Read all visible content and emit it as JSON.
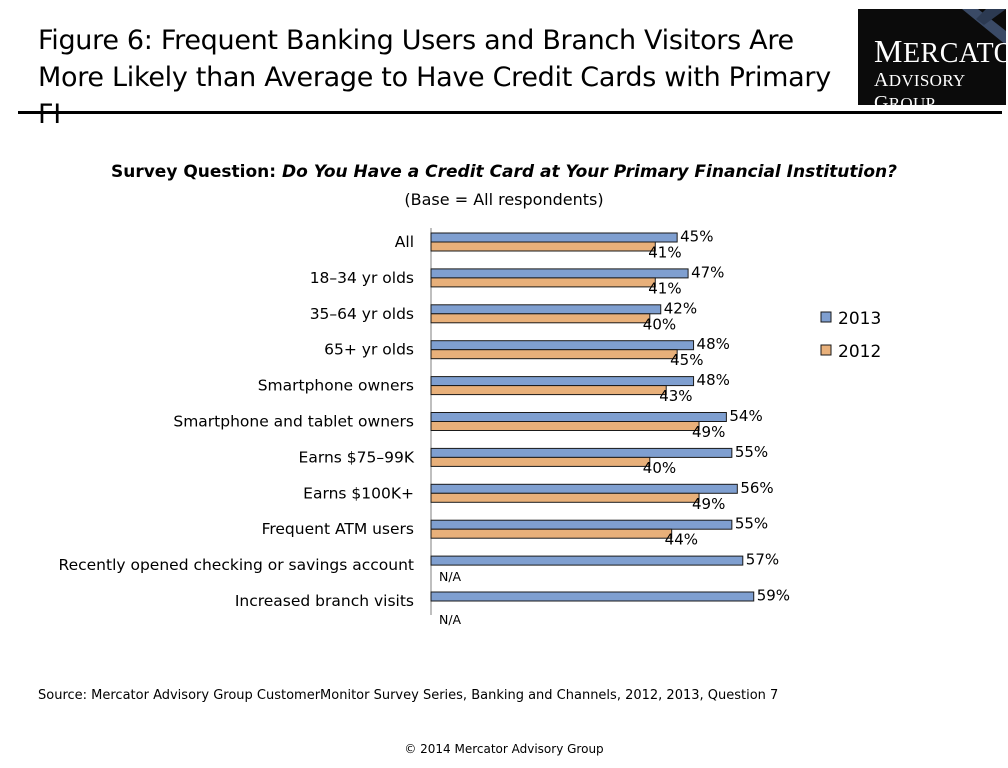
{
  "title": "Figure 6: Frequent Banking Users and Branch Visitors Are More Likely than Average to Have Credit Cards with Primary FI",
  "logo": {
    "line1": "Mercator",
    "line2": "Advisory Group"
  },
  "survey": {
    "prefix": "Survey Question:",
    "question": "Do You Have a Credit Card at Your Primary Financial Institution?",
    "base": "(Base = All respondents)"
  },
  "source": "Source: Mercator Advisory Group CustomerMonitor Survey Series, Banking and Channels, 2012, 2013,  Question 7",
  "copyright": "© 2014 Mercator Advisory Group",
  "colors": {
    "s2013": "#7f9fd0",
    "s2012": "#e8b07a",
    "outline": "#1a1a1a"
  },
  "chart_data": {
    "type": "bar",
    "orientation": "horizontal",
    "categories": [
      "All",
      "18–34 yr olds",
      "35–64 yr olds",
      "65+ yr olds",
      "Smartphone owners",
      "Smartphone and tablet owners",
      "Earns $75–99K",
      "Earns $100K+",
      "Frequent ATM users",
      "Recently opened checking or savings account",
      "Increased branch visits"
    ],
    "series": [
      {
        "name": "2013",
        "values": [
          45,
          47,
          42,
          48,
          48,
          54,
          55,
          56,
          55,
          57,
          59
        ],
        "labels": [
          "45%",
          "47%",
          "42%",
          "48%",
          "48%",
          "54%",
          "55%",
          "56%",
          "55%",
          "57%",
          "59%"
        ]
      },
      {
        "name": "2012",
        "values": [
          41,
          41,
          40,
          45,
          43,
          49,
          40,
          49,
          44,
          null,
          null
        ],
        "labels": [
          "41%",
          "41%",
          "40%",
          "45%",
          "43%",
          "49%",
          "40%",
          "49%",
          "44%",
          "N/A",
          "N/A"
        ]
      }
    ],
    "xlim": [
      0,
      100
    ],
    "legend": "right",
    "grid": false
  }
}
